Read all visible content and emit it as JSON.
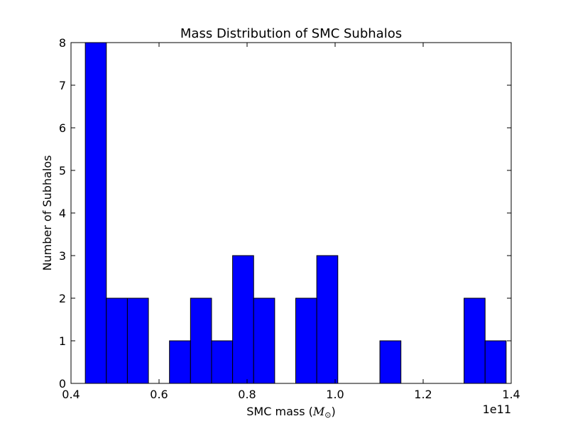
{
  "chart_data": {
    "type": "bar",
    "title": "Mass Distribution of SMC Subhalos",
    "xlabel_text": "SMC mass (",
    "xlabel_math": "M",
    "xlabel_sub": "⊙",
    "xlabel_close": ")",
    "ylabel": "Number of Subhalos",
    "x_offset_label": "1e11",
    "xlim": [
      0.4,
      1.4
    ],
    "ylim": [
      0,
      8
    ],
    "x_ticks": [
      0.4,
      0.6,
      0.8,
      1.0,
      1.2,
      1.4
    ],
    "x_tick_labels": [
      "0.4",
      "0.6",
      "0.8",
      "1.0",
      "1.2",
      "1.4"
    ],
    "y_ticks": [
      0,
      1,
      2,
      3,
      4,
      5,
      6,
      7,
      8
    ],
    "y_tick_labels": [
      "0",
      "1",
      "2",
      "3",
      "4",
      "5",
      "6",
      "7",
      "8"
    ],
    "bin_start": 0.4325,
    "bin_width": 0.0478,
    "counts": [
      8,
      2,
      2,
      0,
      1,
      2,
      1,
      3,
      2,
      0,
      2,
      3,
      0,
      0,
      1,
      0,
      0,
      0,
      2,
      1
    ],
    "grid": false,
    "bar_color": "#0000ff",
    "edge_color": "#000000"
  }
}
